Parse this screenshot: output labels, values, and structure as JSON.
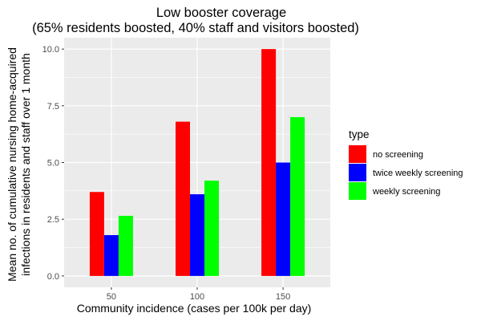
{
  "chart_data": {
    "type": "bar",
    "title": [
      "Low booster coverage",
      "(65% residents boosted, 40% staff and visitors boosted)"
    ],
    "xlabel": "Community incidence (cases per 100k per day)",
    "ylabel": [
      "Mean no. of cumulative nursing home-acquired",
      "infections in residents and staff over 1 month"
    ],
    "categories": [
      "50",
      "100",
      "150"
    ],
    "series": [
      {
        "name": "no screening",
        "color": "#ff0000",
        "values": [
          3.7,
          6.8,
          10.0
        ]
      },
      {
        "name": "twice weekly screening",
        "color": "#0000ff",
        "values": [
          1.8,
          3.6,
          5.0
        ]
      },
      {
        "name": "weekly screening",
        "color": "#00ff00",
        "values": [
          2.65,
          4.2,
          7.0
        ]
      }
    ],
    "yticks": [
      "0.0",
      "2.5",
      "5.0",
      "7.5",
      "10.0"
    ],
    "ylim": [
      -0.5,
      10.5
    ],
    "legend_title": "type",
    "legend_position": "right",
    "grid": true,
    "panel_background": "#ebebeb"
  }
}
